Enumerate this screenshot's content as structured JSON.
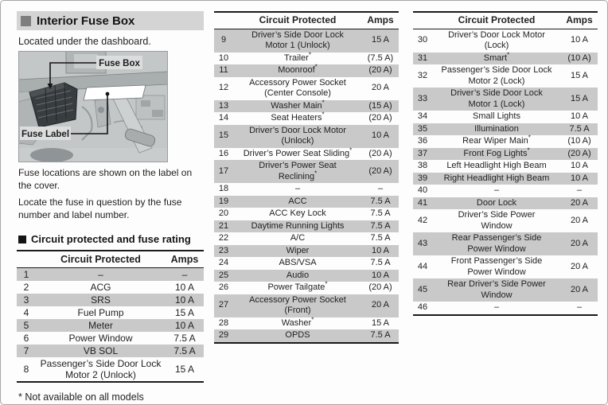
{
  "colors": {
    "header_bar": "#d4d4d4",
    "row_shade": "#c9c9c9",
    "bullet_gray": "#7e7e7e",
    "illustration_bg": "#c3c7c8"
  },
  "left": {
    "section_title": "Interior Fuse Box",
    "intro": "Located under the dashboard.",
    "figure": {
      "fuse_box_label": "Fuse Box",
      "fuse_label_label": "Fuse Label"
    },
    "caption_1": "Fuse locations are shown on the label on the cover.",
    "caption_2": "Locate the fuse in question by the fuse number and label number.",
    "subsection_title": "Circuit protected and fuse rating",
    "footnote": "* Not available on all models"
  },
  "table_headers": [
    "",
    "Circuit Protected",
    "Amps"
  ],
  "tables": [
    {
      "id": "fuses-1-8",
      "rows": [
        {
          "no": "1",
          "circuit": "–",
          "amps": "–"
        },
        {
          "no": "2",
          "circuit": "ACG",
          "amps": "10 A"
        },
        {
          "no": "3",
          "circuit": "SRS",
          "amps": "10 A"
        },
        {
          "no": "4",
          "circuit": "Fuel Pump",
          "amps": "15 A"
        },
        {
          "no": "5",
          "circuit": "Meter",
          "amps": "10 A"
        },
        {
          "no": "6",
          "circuit": "Power Window",
          "amps": "7.5 A"
        },
        {
          "no": "7",
          "circuit": "VB SOL",
          "amps": "7.5 A"
        },
        {
          "no": "8",
          "circuit": "Passenger’s Side Door Lock\nMotor 2 (Unlock)",
          "amps": "15 A"
        }
      ]
    },
    {
      "id": "fuses-9-29",
      "rows": [
        {
          "no": "9",
          "circuit": "Driver’s Side Door Lock\nMotor 1 (Unlock)",
          "amps": "15 A"
        },
        {
          "no": "10",
          "circuit": "Trailer*",
          "amps": "(7.5 A)"
        },
        {
          "no": "11",
          "circuit": "Moonroof*",
          "amps": "(20 A)"
        },
        {
          "no": "12",
          "circuit": "Accessory Power Socket\n(Center Console)",
          "amps": "20 A"
        },
        {
          "no": "13",
          "circuit": "Washer Main*",
          "amps": "(15 A)"
        },
        {
          "no": "14",
          "circuit": "Seat Heaters*",
          "amps": "(20 A)"
        },
        {
          "no": "15",
          "circuit": "Driver’s Door Lock Motor\n(Unlock)",
          "amps": "10 A"
        },
        {
          "no": "16",
          "circuit": "Driver’s Power Seat Sliding*",
          "amps": "(20 A)"
        },
        {
          "no": "17",
          "circuit": "Driver’s Power Seat\nReclining*",
          "amps": "(20 A)"
        },
        {
          "no": "18",
          "circuit": "–",
          "amps": "–"
        },
        {
          "no": "19",
          "circuit": "ACC",
          "amps": "7.5 A"
        },
        {
          "no": "20",
          "circuit": "ACC Key Lock",
          "amps": "7.5 A"
        },
        {
          "no": "21",
          "circuit": "Daytime Running Lights",
          "amps": "7.5 A"
        },
        {
          "no": "22",
          "circuit": "A/C",
          "amps": "7.5 A"
        },
        {
          "no": "23",
          "circuit": "Wiper",
          "amps": "10 A"
        },
        {
          "no": "24",
          "circuit": "ABS/VSA",
          "amps": "7.5 A"
        },
        {
          "no": "25",
          "circuit": "Audio",
          "amps": "10 A"
        },
        {
          "no": "26",
          "circuit": "Power Tailgate*",
          "amps": "(20 A)"
        },
        {
          "no": "27",
          "circuit": "Accessory Power Socket\n(Front)",
          "amps": "20 A"
        },
        {
          "no": "28",
          "circuit": "Washer*",
          "amps": "15 A"
        },
        {
          "no": "29",
          "circuit": "OPDS",
          "amps": "7.5 A"
        }
      ]
    },
    {
      "id": "fuses-30-46",
      "rows": [
        {
          "no": "30",
          "circuit": "Driver’s Door Lock Motor\n(Lock)",
          "amps": "10 A"
        },
        {
          "no": "31",
          "circuit": "Smart*",
          "amps": "(10 A)"
        },
        {
          "no": "32",
          "circuit": "Passenger’s Side Door Lock\nMotor 2 (Lock)",
          "amps": "15 A"
        },
        {
          "no": "33",
          "circuit": "Driver’s Side Door Lock\nMotor 1 (Lock)",
          "amps": "15 A"
        },
        {
          "no": "34",
          "circuit": "Small Lights",
          "amps": "10 A"
        },
        {
          "no": "35",
          "circuit": "Illumination",
          "amps": "7.5 A"
        },
        {
          "no": "36",
          "circuit": "Rear Wiper Main*",
          "amps": "(10 A)"
        },
        {
          "no": "37",
          "circuit": "Front Fog Lights*",
          "amps": "(20 A)"
        },
        {
          "no": "38",
          "circuit": "Left Headlight High Beam",
          "amps": "10 A"
        },
        {
          "no": "39",
          "circuit": "Right Headlight High Beam",
          "amps": "10 A"
        },
        {
          "no": "40",
          "circuit": "–",
          "amps": "–"
        },
        {
          "no": "41",
          "circuit": "Door Lock",
          "amps": "20 A"
        },
        {
          "no": "42",
          "circuit": "Driver’s Side Power\nWindow",
          "amps": "20 A"
        },
        {
          "no": "43",
          "circuit": "Rear Passenger’s Side\nPower Window",
          "amps": "20 A"
        },
        {
          "no": "44",
          "circuit": "Front Passenger’s Side\nPower Window",
          "amps": "20 A"
        },
        {
          "no": "45",
          "circuit": "Rear Driver’s Side Power\nWindow",
          "amps": "20 A"
        },
        {
          "no": "46",
          "circuit": "–",
          "amps": "–"
        }
      ]
    }
  ]
}
